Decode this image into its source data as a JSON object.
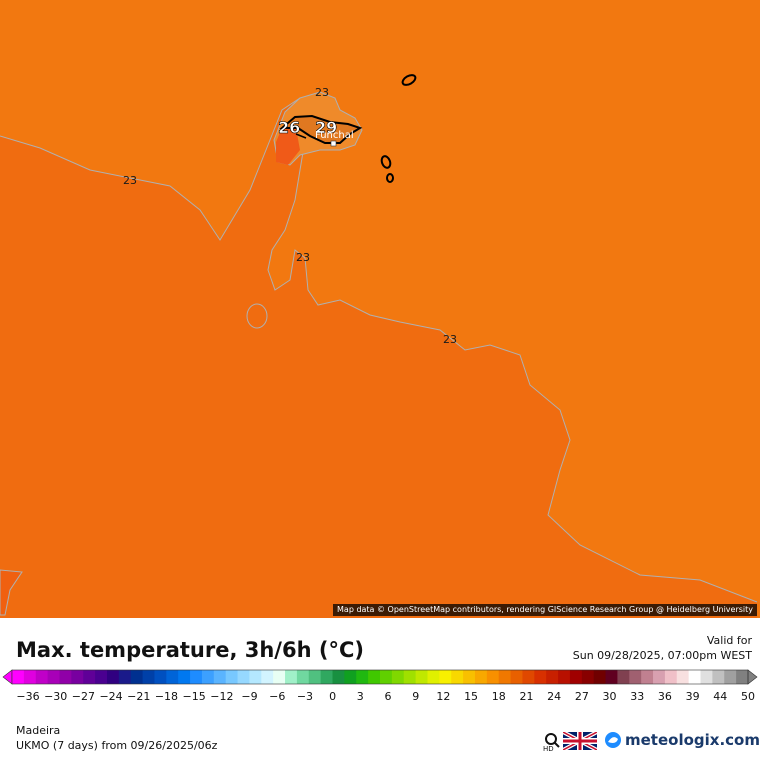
{
  "map": {
    "isotherm_labels": [
      "23",
      "23",
      "23",
      "23"
    ],
    "local_values": [
      "26",
      "29"
    ],
    "city": "Funchal",
    "colors": {
      "sea": "#f27510",
      "sea_north": "#f27810",
      "land": "#f05a18",
      "warm": "#e87820"
    }
  },
  "attribution": "Map data © OpenStreetMap contributors, rendering GIScience Research Group @ Heidelberg University",
  "legend": {
    "title": "Max. temperature, 3h/6h (°C)",
    "valid_label": "Valid for",
    "valid_time": "Sun 09/28/2025, 07:00pm WEST",
    "ticks": [
      "-36",
      "-30",
      "-27",
      "-24",
      "-21",
      "-18",
      "-15",
      "-12",
      "-9",
      "-6",
      "-3",
      "0",
      "3",
      "6",
      "9",
      "12",
      "15",
      "18",
      "21",
      "24",
      "27",
      "30",
      "33",
      "36",
      "39",
      "44",
      "50"
    ],
    "colors": [
      "#ff00ff",
      "#e000e0",
      "#c000c8",
      "#a800b8",
      "#9000a8",
      "#7800a0",
      "#600098",
      "#4a0090",
      "#300080",
      "#1a1a8a",
      "#003090",
      "#0040a8",
      "#0050c0",
      "#0064d8",
      "#0078f0",
      "#1e8cff",
      "#3ca0ff",
      "#5ab4ff",
      "#78c8ff",
      "#96d8ff",
      "#b4e8ff",
      "#d2f4ff",
      "#e8fff4",
      "#a0f0c8",
      "#70d8a0",
      "#50c080",
      "#30a860",
      "#189040",
      "#10a020",
      "#20b810",
      "#40c800",
      "#60d000",
      "#80d800",
      "#a0e000",
      "#c0e800",
      "#e0f000",
      "#f8f000",
      "#f8d800",
      "#f8c000",
      "#f8a800",
      "#f89000",
      "#f07800",
      "#e86000",
      "#e04800",
      "#d83000",
      "#c82000",
      "#b81000",
      "#a00000",
      "#880000",
      "#700000",
      "#600020",
      "#804050",
      "#a06070",
      "#c08090",
      "#d8a0b0",
      "#f0c0c8",
      "#f8e0e0",
      "#ffffff",
      "#e0e0e0",
      "#c0c0c0",
      "#a0a0a0",
      "#808080"
    ]
  },
  "region": "Madeira",
  "model": "UKMO (7 days) from 09/26/2025/06z",
  "hd_label": "HD",
  "brand": "meteologix.com"
}
